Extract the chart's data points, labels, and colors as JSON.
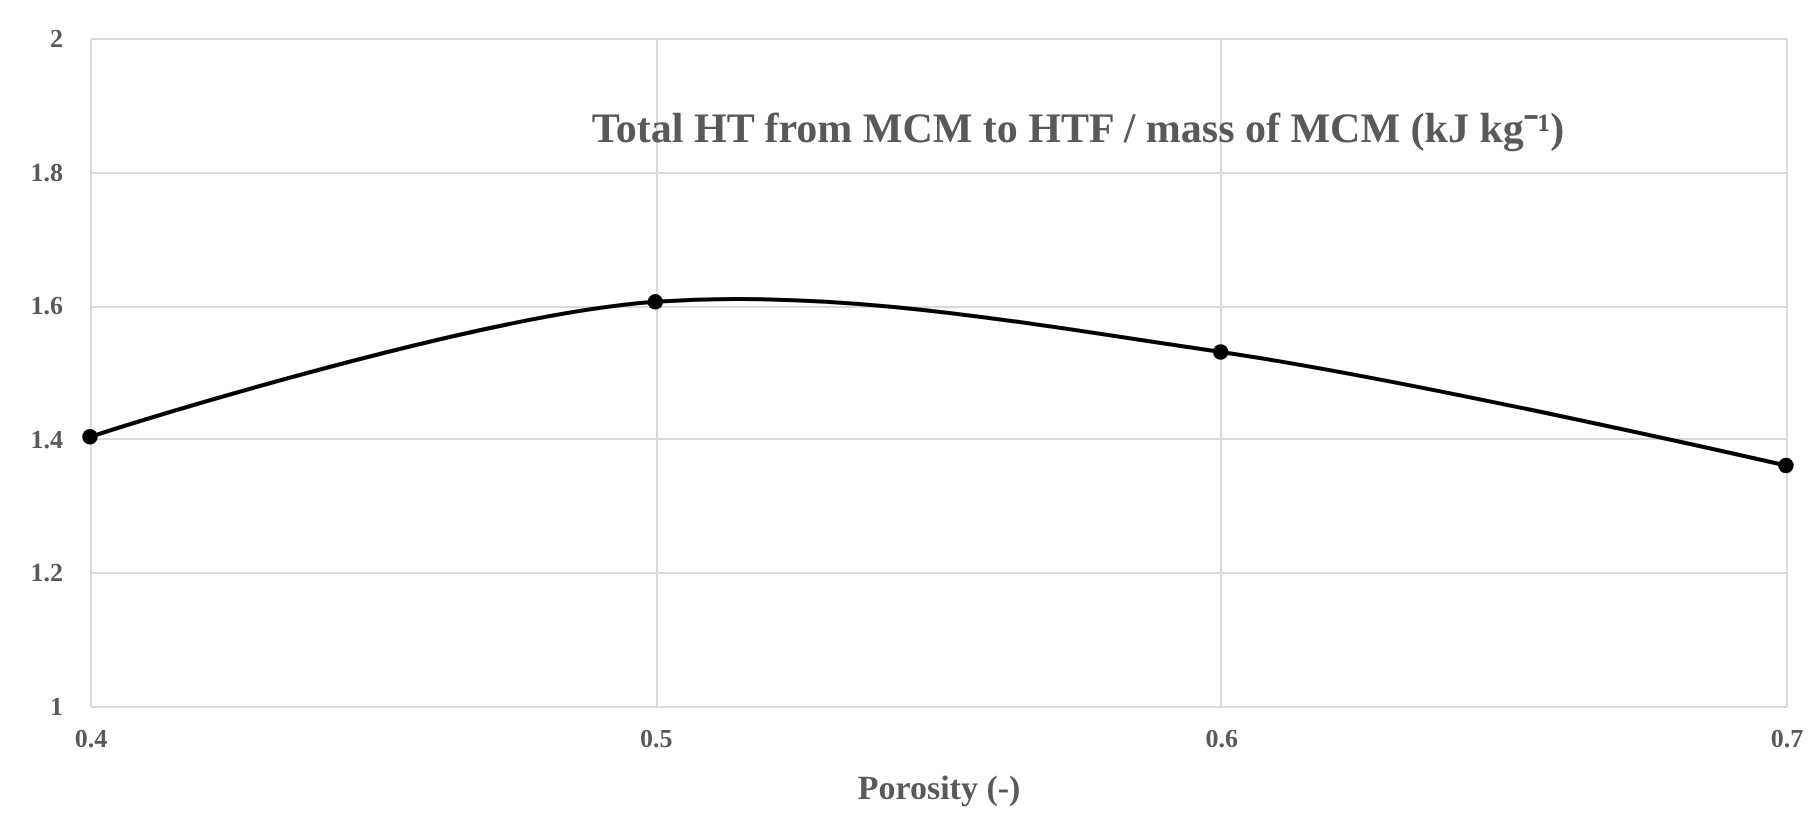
{
  "chart_data": {
    "type": "line",
    "title": "Total HT from MCM to HTF / mass of MCM (kJ kg⁻¹)",
    "xlabel": "Porosity (-)",
    "x": [
      0.4,
      0.5,
      0.6,
      0.7
    ],
    "series": [
      {
        "color": "#000000",
        "values": [
          1.403,
          1.605,
          1.53,
          1.36
        ]
      }
    ],
    "xlim": [
      0.4,
      0.7
    ],
    "xticks": [
      0.4,
      0.5,
      0.6,
      0.7
    ],
    "ylim": [
      1,
      2
    ],
    "yticks": [
      1,
      1.2,
      1.4,
      1.6,
      1.8,
      2
    ],
    "grid": true,
    "legend": false,
    "marker": "circle",
    "line_style": "solid"
  }
}
